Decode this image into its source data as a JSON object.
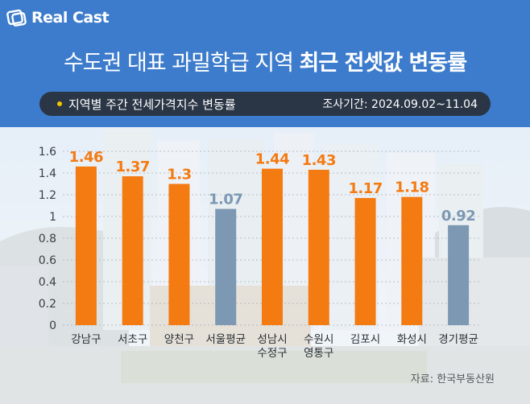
{
  "brand": {
    "logo_text": "Real Cast",
    "logo_icon": "realcast-logo-icon"
  },
  "header": {
    "title_normal": "수도권 대표 과밀학급 지역 ",
    "title_bold": "최근 전셋값 변동률",
    "subtitle": "지역별 주간 전세가격지수 변동률",
    "period": "조사기간: 2024.09.02~11.04"
  },
  "source": "자료: 한국부동산원",
  "colors": {
    "header_bg": "#3d7ccc",
    "district_bar": "#f47a12",
    "average_bar": "#7c98b2",
    "label_orange": "#f47a12",
    "label_gray": "#7c98b2",
    "subbar_bg": "#2a3646",
    "subbar_dot": "#f5c400"
  },
  "chart_data": {
    "type": "bar",
    "categories": [
      [
        "강남구"
      ],
      [
        "서초구"
      ],
      [
        "양천구"
      ],
      [
        "서울평균"
      ],
      [
        "성남시",
        "수정구"
      ],
      [
        "수원시",
        "영통구"
      ],
      [
        "김포시"
      ],
      [
        "화성시"
      ],
      [
        "경기평균"
      ]
    ],
    "values": [
      1.46,
      1.37,
      1.3,
      1.07,
      1.44,
      1.43,
      1.17,
      1.18,
      0.92
    ],
    "value_labels": [
      "1.46",
      "1.37",
      "1.3",
      "1.07",
      "1.44",
      "1.43",
      "1.17",
      "1.18",
      "0.92"
    ],
    "bar_kind": [
      "district",
      "district",
      "district",
      "average",
      "district",
      "district",
      "district",
      "district",
      "average"
    ],
    "yticks": [
      "1.6",
      "1.4",
      "1.2",
      "1",
      "0.8",
      "0.6",
      "0.4",
      "0.2",
      "0"
    ],
    "ylim": [
      0,
      1.6
    ],
    "grid": true,
    "title": "",
    "xlabel": "",
    "ylabel": ""
  }
}
